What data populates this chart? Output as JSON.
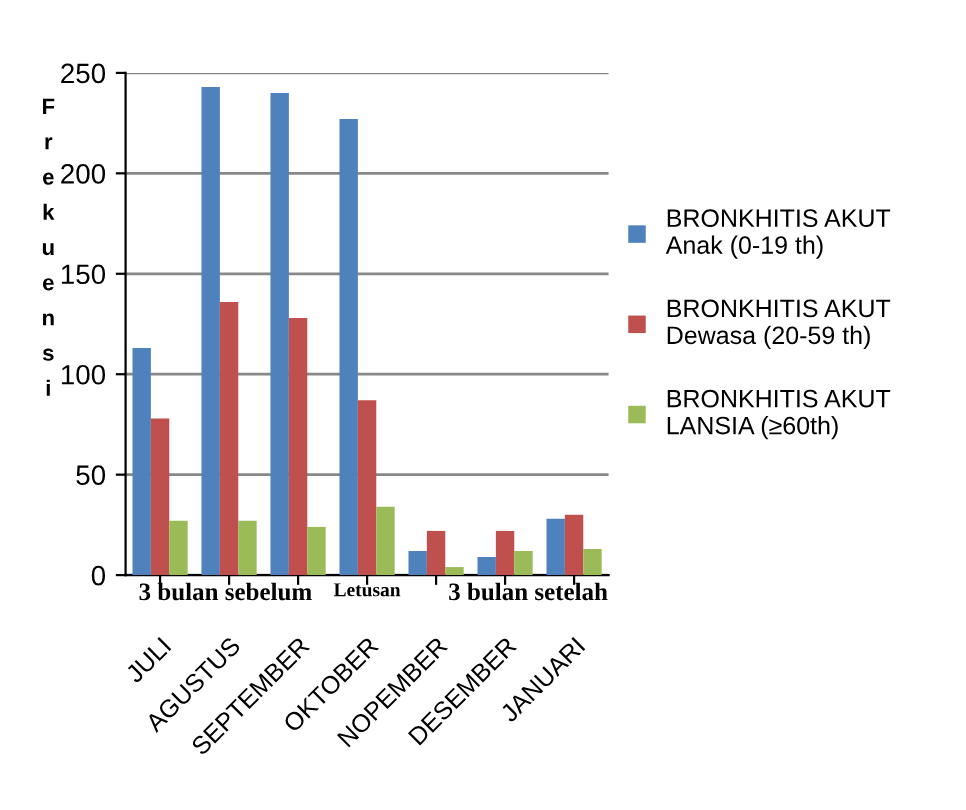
{
  "chart_data": {
    "type": "bar",
    "ylabel": "Frekuensi",
    "categories": [
      "JULI",
      "AGUSTUS",
      "SEPTEMBER",
      "OKTOBER",
      "NOPEMBER",
      "DESEMBER",
      "JANUARI"
    ],
    "series": [
      {
        "name": "BRONKHITIS AKUT Anak (0-19 th)",
        "color": "#4f81bd",
        "values": [
          113,
          243,
          240,
          227,
          12,
          9,
          28
        ]
      },
      {
        "name": "BRONKHITIS AKUT Dewasa (20-59 th)",
        "color": "#c0504d",
        "values": [
          78,
          136,
          128,
          87,
          22,
          22,
          30
        ]
      },
      {
        "name": "BRONKHITIS AKUT LANSIA (≥60th)",
        "color": "#9bbb59",
        "values": [
          27,
          27,
          24,
          34,
          4,
          12,
          13
        ]
      }
    ],
    "annotations": [
      "3 bulan sebelum",
      "Letusan",
      "3 bulan setelah"
    ],
    "ylim": [
      0,
      250
    ],
    "yticks": [
      0,
      50,
      100,
      150,
      200,
      250
    ],
    "grid": "y",
    "legend": "right"
  }
}
